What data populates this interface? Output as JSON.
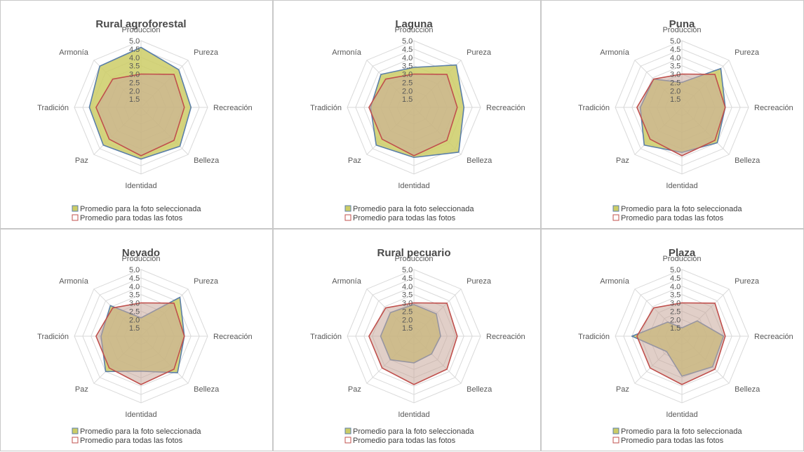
{
  "colors": {
    "selected_fill": "#cccc66",
    "selected_stroke": "#5b7fa8",
    "all_fill": "#c9a89a",
    "all_stroke": "#c0504d",
    "web": "#d9d9d9"
  },
  "legend": {
    "selected_label": "Promedio para la foto seleccionada",
    "all_label": "Promedio para todas las fotos"
  },
  "chart_data": [
    {
      "type": "radar",
      "title": "Rural agroforestal",
      "axes": [
        "Producción",
        "Pureza",
        "Recreación",
        "Belleza",
        "Identidad",
        "Paz",
        "Tradición",
        "Armonía"
      ],
      "ticks": [
        "5.0",
        "4.5",
        "4.0",
        "3.5",
        "3.0",
        "2.5",
        "2.0",
        "1.5"
      ],
      "range": [
        1,
        5
      ],
      "series": [
        {
          "name": "Promedio para la foto seleccionada",
          "values": [
            4.6,
            4.2,
            4.0,
            4.3,
            4.1,
            4.2,
            4.1,
            4.5
          ]
        },
        {
          "name": "Promedio para todas las fotos",
          "values": [
            3.0,
            3.8,
            3.6,
            3.8,
            3.9,
            3.7,
            3.7,
            3.4
          ]
        }
      ]
    },
    {
      "type": "radar",
      "title": "Laguna",
      "axes": [
        "Producción",
        "Pureza",
        "Recreación",
        "Belleza",
        "Identidad",
        "Paz",
        "Tradición",
        "Armonía"
      ],
      "ticks": [
        "5.0",
        "4.5",
        "4.0",
        "3.5",
        "3.0",
        "2.5",
        "2.0",
        "1.5"
      ],
      "range": [
        1,
        5
      ],
      "series": [
        {
          "name": "Promedio para la foto seleccionada",
          "values": [
            3.4,
            4.6,
            4.0,
            4.8,
            4.0,
            4.2,
            3.6,
            3.8
          ]
        },
        {
          "name": "Promedio para todas las fotos",
          "values": [
            3.0,
            3.8,
            3.6,
            3.8,
            3.9,
            3.7,
            3.7,
            3.4
          ]
        }
      ]
    },
    {
      "type": "radar",
      "title": "Puna",
      "axes": [
        "Producción",
        "Pureza",
        "Recreación",
        "Belleza",
        "Identidad",
        "Paz",
        "Tradición",
        "Armonía"
      ],
      "ticks": [
        "5.0",
        "4.5",
        "4.0",
        "3.5",
        "3.0",
        "2.5",
        "2.0",
        "1.5"
      ],
      "range": [
        1,
        5
      ],
      "series": [
        {
          "name": "Promedio para la foto seleccionada",
          "values": [
            2.5,
            4.3,
            3.6,
            4.0,
            3.7,
            4.2,
            3.5,
            3.4
          ]
        },
        {
          "name": "Promedio para todas las fotos",
          "values": [
            3.0,
            3.8,
            3.6,
            3.8,
            3.9,
            3.7,
            3.7,
            3.4
          ]
        }
      ]
    },
    {
      "type": "radar",
      "title": "Nevado",
      "axes": [
        "Producción",
        "Pureza",
        "Recreación",
        "Belleza",
        "Identidad",
        "Paz",
        "Tradición",
        "Armonía"
      ],
      "ticks": [
        "5.0",
        "4.5",
        "4.0",
        "3.5",
        "3.0",
        "2.5",
        "2.0",
        "1.5"
      ],
      "range": [
        1,
        5
      ],
      "series": [
        {
          "name": "Promedio para la foto seleccionada",
          "values": [
            2.1,
            4.3,
            3.6,
            4.1,
            3.1,
            4.0,
            3.4,
            3.6
          ]
        },
        {
          "name": "Promedio para todas las fotos",
          "values": [
            3.0,
            3.8,
            3.6,
            3.8,
            3.9,
            3.7,
            3.7,
            3.4
          ]
        }
      ]
    },
    {
      "type": "radar",
      "title": "Rural pecuario",
      "axes": [
        "Producción",
        "Pureza",
        "Recreación",
        "Belleza",
        "Identidad",
        "Paz",
        "Tradición",
        "Armonía"
      ],
      "ticks": [
        "5.0",
        "4.5",
        "4.0",
        "3.5",
        "3.0",
        "2.5",
        "2.0",
        "1.5"
      ],
      "range": [
        1,
        5
      ],
      "series": [
        {
          "name": "Promedio para la foto seleccionada",
          "values": [
            2.9,
            2.9,
            2.6,
            2.5,
            2.6,
            3.0,
            3.0,
            3.0
          ]
        },
        {
          "name": "Promedio para todas las fotos",
          "values": [
            3.0,
            3.8,
            3.6,
            3.8,
            3.9,
            3.7,
            3.7,
            3.4
          ]
        }
      ]
    },
    {
      "type": "radar",
      "title": "Plaza",
      "axes": [
        "Producción",
        "Pureza",
        "Recreación",
        "Belleza",
        "Identidad",
        "Paz",
        "Tradición",
        "Armonía"
      ],
      "ticks": [
        "5.0",
        "4.5",
        "4.0",
        "3.5",
        "3.0",
        "2.5",
        "2.0",
        "1.5"
      ],
      "range": [
        1,
        5
      ],
      "series": [
        {
          "name": "Promedio para la foto seleccionada",
          "values": [
            1.5,
            2.3,
            3.5,
            3.6,
            3.4,
            2.3,
            4.0,
            2.2
          ]
        },
        {
          "name": "Promedio para todas las fotos",
          "values": [
            3.0,
            3.8,
            3.6,
            3.8,
            3.9,
            3.7,
            3.7,
            3.4
          ]
        }
      ]
    }
  ]
}
